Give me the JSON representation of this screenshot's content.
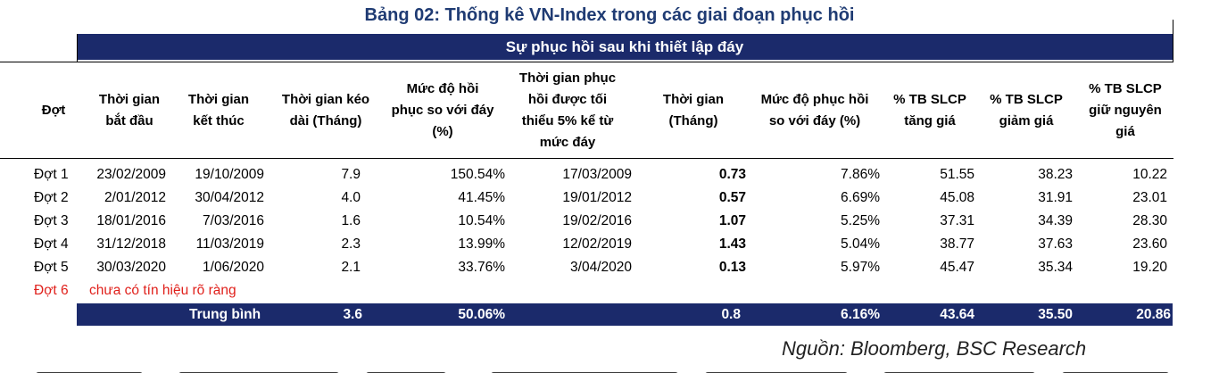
{
  "title": "Bảng 02: Thống kê VN-Index trong các giai đoạn phục hồi",
  "subheader": "Sự phục hồi sau khi thiết lập đáy",
  "headers": {
    "dot": "Đợt",
    "start_1": "Thời gian",
    "start_2": "bắt đầu",
    "end_1": "Thời gian",
    "end_2": "kết thúc",
    "dur_1": "Thời gian kéo",
    "dur_2": "dài (Tháng)",
    "rec_1": "Mức độ hồi",
    "rec_2": "phục so với đáy",
    "rec_3": "(%)",
    "min5_1": "Thời gian phục",
    "min5_2": "hồi được tối",
    "min5_3": "thiểu 5% kể từ",
    "min5_4": "mức đáy",
    "time_1": "Thời gian",
    "time_2": "(Tháng)",
    "lvl_1": "Mức độ phục hồi",
    "lvl_2": "so với đáy (%)",
    "up_1": "% TB SLCP",
    "up_2": "tăng giá",
    "down_1": "% TB SLCP",
    "down_2": "giảm giá",
    "flat_1": "% TB SLCP",
    "flat_2": "giữ nguyên",
    "flat_3": "giá"
  },
  "rows": [
    {
      "dot": "Đợt 1",
      "start": "23/02/2009",
      "end": "19/10/2009",
      "dur": "7.9",
      "rec": "150.54%",
      "min5": "17/03/2009",
      "time": "0.73",
      "lvl": "7.86%",
      "up": "51.55",
      "down": "38.23",
      "flat": "10.22"
    },
    {
      "dot": "Đợt 2",
      "start": "2/01/2012",
      "end": "30/04/2012",
      "dur": "4.0",
      "rec": "41.45%",
      "min5": "19/01/2012",
      "time": "0.57",
      "lvl": "6.69%",
      "up": "45.08",
      "down": "31.91",
      "flat": "23.01"
    },
    {
      "dot": "Đợt 3",
      "start": "18/01/2016",
      "end": "7/03/2016",
      "dur": "1.6",
      "rec": "10.54%",
      "min5": "19/02/2016",
      "time": "1.07",
      "lvl": "5.25%",
      "up": "37.31",
      "down": "34.39",
      "flat": "28.30"
    },
    {
      "dot": "Đợt 4",
      "start": "31/12/2018",
      "end": "11/03/2019",
      "dur": "2.3",
      "rec": "13.99%",
      "min5": "12/02/2019",
      "time": "1.43",
      "lvl": "5.04%",
      "up": "38.77",
      "down": "37.63",
      "flat": "23.60"
    },
    {
      "dot": "Đợt 5",
      "start": "30/03/2020",
      "end": "1/06/2020",
      "dur": "2.1",
      "rec": "33.76%",
      "min5": "3/04/2020",
      "time": "0.13",
      "lvl": "5.97%",
      "up": "45.47",
      "down": "35.34",
      "flat": "19.20"
    }
  ],
  "row6": {
    "dot": "Đợt 6",
    "note": "chưa có tín hiệu rõ ràng"
  },
  "average": {
    "label": "Trung bình",
    "dur": "3.6",
    "rec": "50.06%",
    "time": "0.8",
    "lvl": "6.16%",
    "up": "43.64",
    "down": "35.50",
    "flat": "20.86"
  },
  "source": "Nguồn: Bloomberg, BSC Research"
}
